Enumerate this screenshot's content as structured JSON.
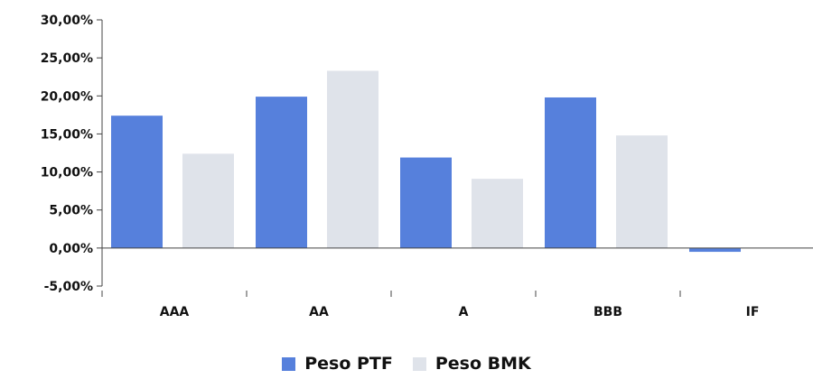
{
  "chart_data": {
    "type": "bar",
    "categories": [
      "AAA",
      "AA",
      "A",
      "BBB",
      "IF"
    ],
    "series": [
      {
        "name": "Peso PTF",
        "color": "#5680dc",
        "values": [
          17.4,
          19.9,
          11.9,
          19.8,
          -0.5
        ]
      },
      {
        "name": "Peso BMK",
        "color": "#dfe3ea",
        "values": [
          12.4,
          23.3,
          9.1,
          14.8,
          0
        ]
      }
    ],
    "ylim": [
      -5,
      30
    ],
    "yticks": [
      30,
      25,
      20,
      15,
      10,
      5,
      0,
      -5
    ],
    "ytick_labels": [
      "30,00%",
      "25,00%",
      "20,00%",
      "15,00%",
      "10,00%",
      "5,00%",
      "0,00%",
      "-5,00%"
    ],
    "legend_position": "bottom-center",
    "grid": false
  }
}
